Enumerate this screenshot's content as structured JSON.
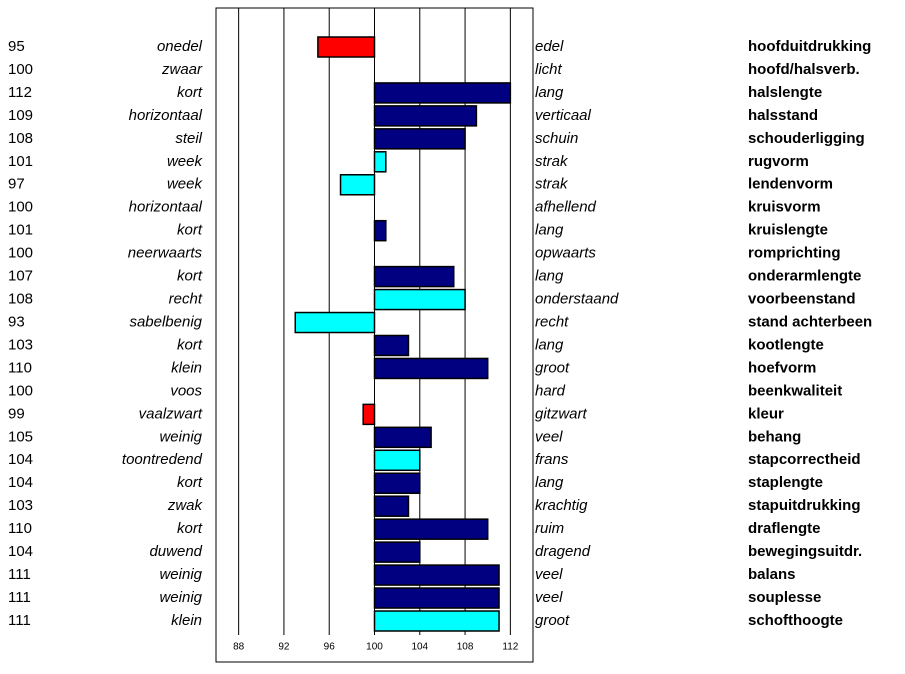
{
  "chart_data": {
    "type": "bar",
    "orientation": "horizontal",
    "categories": [
      "hoofduitdrukking",
      "hoofd/halsverb.",
      "halslengte",
      "halsstand",
      "schouderligging",
      "rugvorm",
      "lendenvorm",
      "kruisvorm",
      "kruislengte",
      "romprichting",
      "onderarmlengte",
      "voorbeenstand",
      "stand achterbeen",
      "kootlengte",
      "hoefvorm",
      "beenkwaliteit",
      "kleur",
      "behang",
      "stapcorrectheid",
      "staplengte",
      "stapuitdrukking",
      "draflengte",
      "bewegingsuitdr.",
      "balans",
      "souplesse",
      "schofthoogte"
    ],
    "low_labels": [
      "onedel",
      "zwaar",
      "kort",
      "horizontaal",
      "steil",
      "week",
      "week",
      "horizontaal",
      "kort",
      "neerwaarts",
      "kort",
      "recht",
      "sabelbenig",
      "kort",
      "klein",
      "voos",
      "vaalzwart",
      "weinig",
      "toontredend",
      "kort",
      "zwak",
      "kort",
      "duwend",
      "weinig",
      "weinig",
      "klein"
    ],
    "high_labels": [
      "edel",
      "licht",
      "lang",
      "verticaal",
      "schuin",
      "strak",
      "strak",
      "afhellend",
      "lang",
      "opwaarts",
      "lang",
      "onderstaand",
      "recht",
      "lang",
      "groot",
      "hard",
      "gitzwart",
      "veel",
      "frans",
      "lang",
      "krachtig",
      "ruim",
      "dragend",
      "veel",
      "veel",
      "groot"
    ],
    "values": [
      95,
      100,
      112,
      109,
      108,
      101,
      97,
      100,
      101,
      100,
      107,
      108,
      93,
      103,
      110,
      100,
      99,
      105,
      104,
      104,
      103,
      110,
      104,
      111,
      111,
      111
    ],
    "colors": [
      "#ff0000",
      "#000080",
      "#000080",
      "#000080",
      "#000080",
      "#00ffff",
      "#00ffff",
      "#000080",
      "#000080",
      "#000080",
      "#000080",
      "#00ffff",
      "#00ffff",
      "#000080",
      "#000080",
      "#000080",
      "#ff0000",
      "#000080",
      "#00ffff",
      "#000080",
      "#000080",
      "#000080",
      "#000080",
      "#000080",
      "#000080",
      "#00ffff"
    ],
    "base": 100,
    "xlim": [
      86,
      114
    ],
    "xticks": [
      88,
      92,
      96,
      100,
      104,
      108,
      112
    ],
    "grid": true
  }
}
